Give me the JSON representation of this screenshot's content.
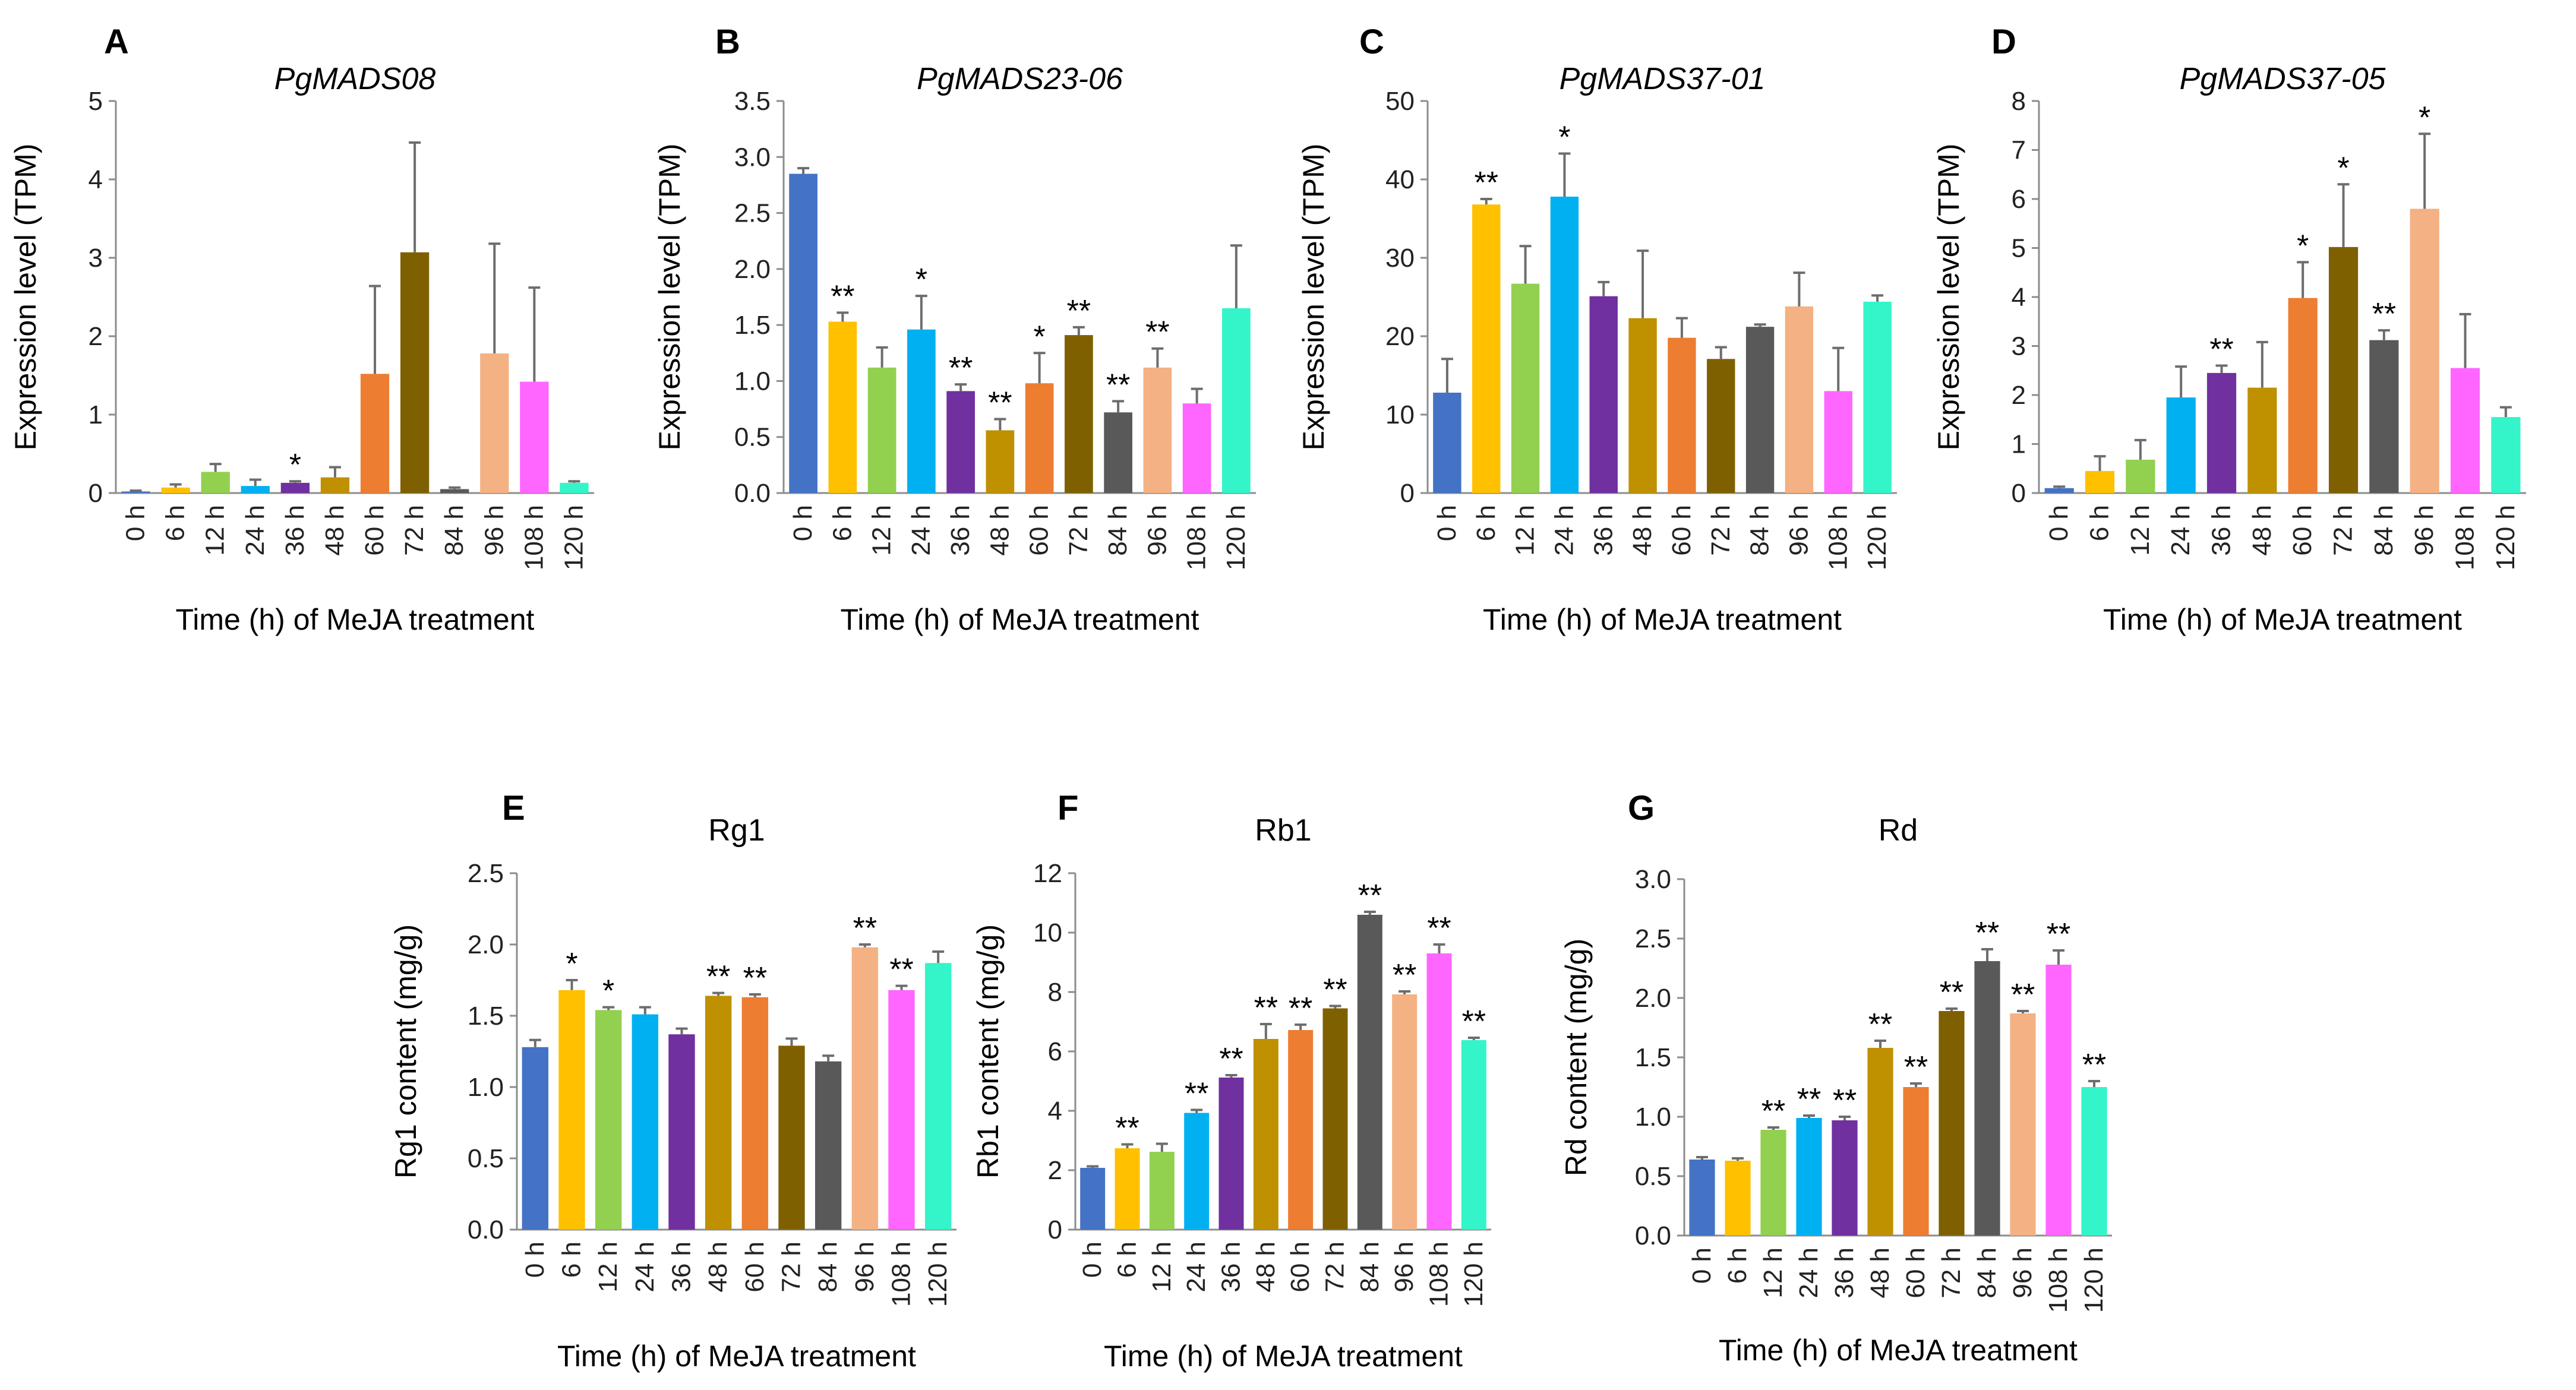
{
  "chart_data": [
    {
      "type": "bar",
      "letter": "A",
      "title": "PgMADS08",
      "title_italic": true,
      "ylabel": "Expression level (TPM)",
      "xlabel": "Time (h) of MeJA treatment",
      "ylim": [
        0,
        5
      ],
      "yticks": [
        "0",
        "1",
        "2",
        "3",
        "4",
        "5"
      ],
      "ytick_values": [
        0,
        1,
        2,
        3,
        4,
        5
      ],
      "categories": [
        "0 h",
        "6 h",
        "12 h",
        "24 h",
        "36 h",
        "48 h",
        "60 h",
        "72 h",
        "84 h",
        "96 h",
        "108 h",
        "120 h"
      ],
      "values": [
        0.02,
        0.07,
        0.27,
        0.09,
        0.13,
        0.2,
        1.52,
        3.07,
        0.05,
        1.78,
        1.42,
        0.13
      ],
      "errors": [
        0.01,
        0.04,
        0.1,
        0.08,
        0.02,
        0.13,
        1.12,
        1.4,
        0.02,
        1.4,
        1.2,
        0.02
      ],
      "significance": [
        "",
        "",
        "",
        "",
        "*",
        "",
        "",
        "",
        "",
        "",
        "",
        ""
      ]
    },
    {
      "type": "bar",
      "letter": "B",
      "title": "PgMADS23-06",
      "title_italic": true,
      "ylabel": "Expression level (TPM)",
      "xlabel": "Time (h) of MeJA treatment",
      "ylim": [
        0,
        3.5
      ],
      "yticks": [
        "0.0",
        "0.5",
        "1.0",
        "1.5",
        "2.0",
        "2.5",
        "3.0",
        "3.5"
      ],
      "ytick_values": [
        0,
        0.5,
        1,
        1.5,
        2,
        2.5,
        3,
        3.5
      ],
      "categories": [
        "0 h",
        "6 h",
        "12 h",
        "24 h",
        "36 h",
        "48 h",
        "60 h",
        "72 h",
        "84 h",
        "96 h",
        "108 h",
        "120 h"
      ],
      "values": [
        2.85,
        1.53,
        1.12,
        1.46,
        0.91,
        0.56,
        0.98,
        1.41,
        0.72,
        1.12,
        0.8,
        1.65
      ],
      "errors": [
        0.05,
        0.08,
        0.18,
        0.3,
        0.06,
        0.1,
        0.27,
        0.07,
        0.1,
        0.17,
        0.13,
        0.56
      ],
      "significance": [
        "",
        "**",
        "",
        "*",
        "**",
        "**",
        "*",
        "**",
        "**",
        "**",
        "",
        ""
      ]
    },
    {
      "type": "bar",
      "letter": "C",
      "title": "PgMADS37-01",
      "title_italic": true,
      "ylabel": "Expression level (TPM)",
      "xlabel": "Time (h) of MeJA treatment",
      "ylim": [
        0,
        50
      ],
      "yticks": [
        "0",
        "10",
        "20",
        "30",
        "40",
        "50"
      ],
      "ytick_values": [
        0,
        10,
        20,
        30,
        40,
        50
      ],
      "categories": [
        "0 h",
        "6 h",
        "12 h",
        "24 h",
        "36 h",
        "48 h",
        "60 h",
        "72 h",
        "84 h",
        "96 h",
        "108 h",
        "120 h"
      ],
      "values": [
        12.8,
        36.8,
        26.7,
        37.8,
        25.1,
        22.3,
        19.8,
        17.1,
        21.2,
        23.8,
        13.0,
        24.4
      ],
      "errors": [
        4.3,
        0.7,
        4.8,
        5.5,
        1.8,
        8.6,
        2.5,
        1.5,
        0.3,
        4.3,
        5.5,
        0.8
      ],
      "significance": [
        "",
        "**",
        "",
        "*",
        "",
        "",
        "",
        "",
        "",
        "",
        "",
        ""
      ]
    },
    {
      "type": "bar",
      "letter": "D",
      "title": "PgMADS37-05",
      "title_italic": true,
      "ylabel": "Expression level (TPM)",
      "xlabel": "Time (h) of MeJA treatment",
      "ylim": [
        0,
        8
      ],
      "yticks": [
        "0",
        "1",
        "2",
        "3",
        "4",
        "5",
        "6",
        "7",
        "8"
      ],
      "ytick_values": [
        0,
        1,
        2,
        3,
        4,
        5,
        6,
        7,
        8
      ],
      "categories": [
        "0 h",
        "6 h",
        "12 h",
        "24 h",
        "36 h",
        "48 h",
        "60 h",
        "72 h",
        "84 h",
        "96 h",
        "108 h",
        "120 h"
      ],
      "values": [
        0.1,
        0.45,
        0.68,
        1.95,
        2.45,
        2.15,
        3.98,
        5.02,
        3.12,
        5.8,
        2.55,
        1.55
      ],
      "errors": [
        0.03,
        0.3,
        0.4,
        0.63,
        0.15,
        0.93,
        0.73,
        1.28,
        0.2,
        1.53,
        1.1,
        0.2
      ],
      "significance": [
        "",
        "",
        "",
        "",
        "**",
        "",
        "*",
        "*",
        "**",
        "*",
        "",
        ""
      ]
    },
    {
      "type": "bar",
      "letter": "E",
      "title": "Rg1",
      "title_italic": false,
      "ylabel": "Rg1 content (mg/g)",
      "xlabel": "Time (h) of MeJA treatment",
      "ylim": [
        0,
        2.5
      ],
      "yticks": [
        "0.0",
        "0.5",
        "1.0",
        "1.5",
        "2.0",
        "2.5"
      ],
      "ytick_values": [
        0,
        0.5,
        1,
        1.5,
        2,
        2.5
      ],
      "categories": [
        "0 h",
        "6 h",
        "12 h",
        "24 h",
        "36 h",
        "48 h",
        "60 h",
        "72 h",
        "84 h",
        "96 h",
        "108 h",
        "120 h"
      ],
      "values": [
        1.28,
        1.68,
        1.54,
        1.51,
        1.37,
        1.64,
        1.63,
        1.29,
        1.18,
        1.98,
        1.68,
        1.87
      ],
      "errors": [
        0.05,
        0.07,
        0.02,
        0.05,
        0.04,
        0.02,
        0.02,
        0.05,
        0.04,
        0.02,
        0.03,
        0.08
      ],
      "significance": [
        "",
        "*",
        "*",
        "",
        "",
        "**",
        "**",
        "",
        "",
        "**",
        "**",
        ""
      ]
    },
    {
      "type": "bar",
      "letter": "F",
      "title": "Rb1",
      "title_italic": false,
      "ylabel": "Rb1 content (mg/g)",
      "xlabel": "Time (h) of MeJA treatment",
      "ylim": [
        0,
        12
      ],
      "yticks": [
        "0",
        "2",
        "4",
        "6",
        "8",
        "10",
        "12"
      ],
      "ytick_values": [
        0,
        2,
        4,
        6,
        8,
        10,
        12
      ],
      "categories": [
        "0 h",
        "6 h",
        "12 h",
        "24 h",
        "36 h",
        "48 h",
        "60 h",
        "72 h",
        "84 h",
        "96 h",
        "108 h",
        "120 h"
      ],
      "values": [
        2.08,
        2.74,
        2.62,
        3.93,
        5.12,
        6.42,
        6.72,
        7.45,
        10.6,
        7.92,
        9.3,
        6.38
      ],
      "errors": [
        0.05,
        0.13,
        0.27,
        0.1,
        0.08,
        0.5,
        0.18,
        0.08,
        0.1,
        0.1,
        0.3,
        0.08
      ],
      "significance": [
        "",
        "**",
        "",
        "**",
        "**",
        "**",
        "**",
        "**",
        "**",
        "**",
        "**",
        "**"
      ]
    },
    {
      "type": "bar",
      "letter": "G",
      "title": "Rd",
      "title_italic": false,
      "ylabel": "Rd content (mg/g)",
      "xlabel": "Time (h) of MeJA treatment",
      "ylim": [
        0,
        3
      ],
      "yticks": [
        "0.0",
        "0.5",
        "1.0",
        "1.5",
        "2.0",
        "2.5",
        "3.0"
      ],
      "ytick_values": [
        0,
        0.5,
        1,
        1.5,
        2,
        2.5,
        3
      ],
      "categories": [
        "0 h",
        "6 h",
        "12 h",
        "24 h",
        "36 h",
        "48 h",
        "60 h",
        "72 h",
        "84 h",
        "96 h",
        "108 h",
        "120 h"
      ],
      "values": [
        0.64,
        0.63,
        0.89,
        0.99,
        0.97,
        1.58,
        1.25,
        1.89,
        2.31,
        1.87,
        2.28,
        1.25
      ],
      "errors": [
        0.02,
        0.02,
        0.02,
        0.02,
        0.03,
        0.06,
        0.03,
        0.02,
        0.1,
        0.02,
        0.12,
        0.05
      ],
      "significance": [
        "",
        "",
        "**",
        "**",
        "**",
        "**",
        "**",
        "**",
        "**",
        "**",
        "**",
        "**"
      ]
    }
  ],
  "bar_colors": [
    "#4472C4",
    "#FFC000",
    "#92D050",
    "#00B0F0",
    "#7030A0",
    "#BF9000",
    "#ED7D31",
    "#7F6000",
    "#595959",
    "#F4B183",
    "#FF66FF",
    "#33F5C9"
  ]
}
